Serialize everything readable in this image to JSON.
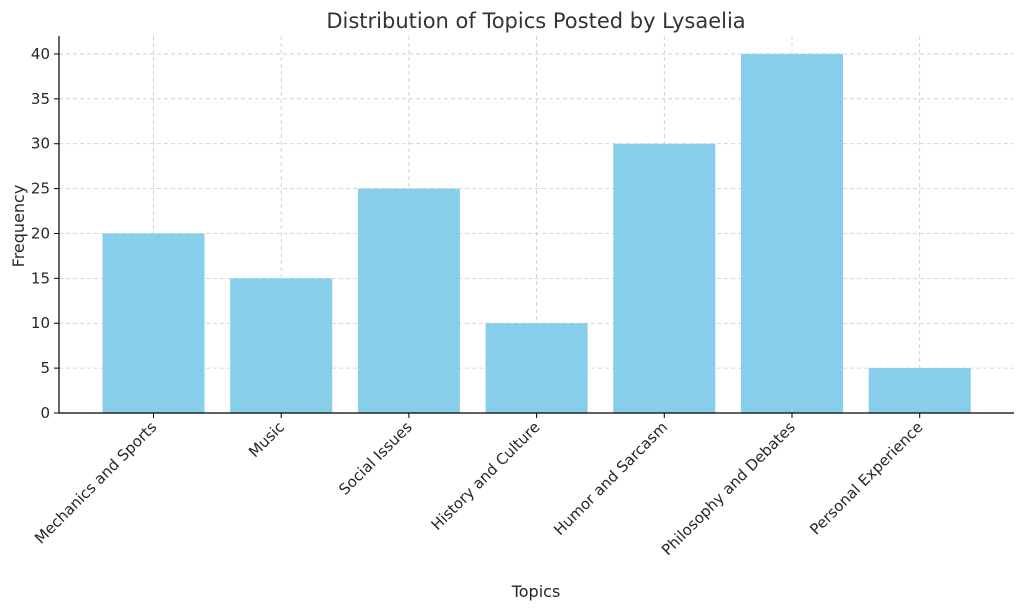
{
  "chart_data": {
    "type": "bar",
    "title": "Distribution of Topics Posted by Lysaelia",
    "xlabel": "Topics",
    "ylabel": "Frequency",
    "categories": [
      "Mechanics and Sports",
      "Music",
      "Social Issues",
      "History and Culture",
      "Humor and Sarcasm",
      "Philosophy and Debates",
      "Personal Experience"
    ],
    "values": [
      20,
      15,
      25,
      10,
      30,
      40,
      5
    ],
    "ylim": [
      0,
      42
    ],
    "yticks": [
      0,
      5,
      10,
      15,
      20,
      25,
      30,
      35,
      40
    ],
    "grid": true,
    "bar_color": "#87CEEB",
    "legend": "none"
  }
}
